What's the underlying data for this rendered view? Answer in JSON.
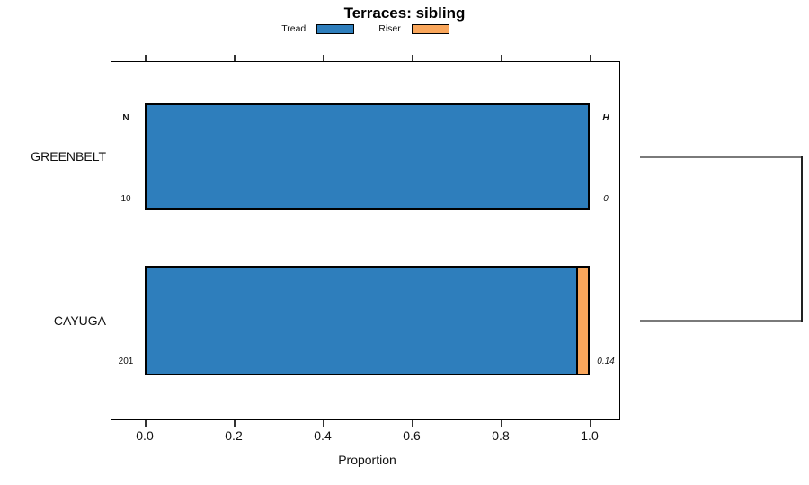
{
  "title": "Terraces: sibling",
  "legend": {
    "items": [
      {
        "label": "Tread",
        "color": "#2E7EBC"
      },
      {
        "label": "Riser",
        "color": "#F9A65B"
      }
    ]
  },
  "axis": {
    "xlabel": "Proportion",
    "ticks": [
      "0.0",
      "0.2",
      "0.4",
      "0.6",
      "0.8",
      "1.0"
    ]
  },
  "rows": [
    {
      "label": "GREENBELT",
      "n": "10",
      "h": "0"
    },
    {
      "label": "CAYUGA",
      "n": "201",
      "h": "0.14"
    }
  ],
  "annotations": {
    "left_header": "N",
    "right_header": "H"
  },
  "chart_data": {
    "type": "bar",
    "orientation": "horizontal",
    "stacked": true,
    "title": "Terraces: sibling",
    "xlabel": "Proportion",
    "xlim": [
      0,
      1
    ],
    "xticks": [
      0.0,
      0.2,
      0.4,
      0.6,
      0.8,
      1.0
    ],
    "grid": false,
    "legend_position": "top",
    "categories": [
      "GREENBELT",
      "CAYUGA"
    ],
    "series": [
      {
        "name": "Tread",
        "color": "#2E7EBC",
        "values": [
          1.0,
          0.974
        ]
      },
      {
        "name": "Riser",
        "color": "#F9A65B",
        "values": [
          0.0,
          0.026
        ]
      }
    ],
    "sample_counts_N": [
      10,
      201
    ],
    "diversity_H": [
      0,
      0.14
    ],
    "right_bracket": "dendrogram bracket joining GREENBELT and CAYUGA rows"
  }
}
